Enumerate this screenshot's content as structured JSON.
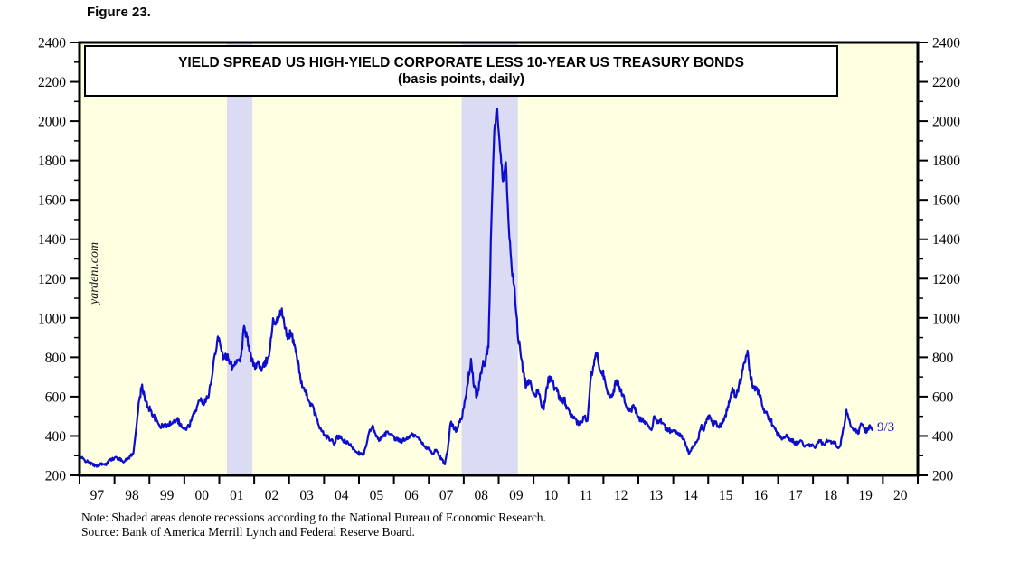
{
  "figure_label": "Figure 23.",
  "title": {
    "line1": "YIELD SPREAD US HIGH-YIELD CORPORATE LESS 10-YEAR US TREASURY BONDS",
    "line2": "(basis points, daily)"
  },
  "watermark": "yardeni.com",
  "notes": {
    "line1": "Note: Shaded areas denote recessions according to the National Bureau of Economic Research.",
    "line2": "Source: Bank of America Merrill Lynch and Federal Reserve Board."
  },
  "colors": {
    "plot_bg": "#FFFFE1",
    "line": "#0D0DCE",
    "recession_band": "#DBDBF4",
    "frame": "#000000",
    "text": "#000000",
    "annotation": "#0D0DCE"
  },
  "chart_data": {
    "type": "line",
    "title": "YIELD SPREAD US HIGH-YIELD CORPORATE LESS 10-YEAR US TREASURY BONDS",
    "subtitle": "(basis points, daily)",
    "ylabel": "basis points",
    "ylim": [
      200,
      2400
    ],
    "y_major_ticks": [
      200,
      400,
      600,
      800,
      1000,
      1200,
      1400,
      1600,
      1800,
      2000,
      2200,
      2400
    ],
    "y_minor_step": 100,
    "xlim": [
      1997,
      2021
    ],
    "x_tick_labels": [
      "97",
      "98",
      "99",
      "00",
      "01",
      "02",
      "03",
      "04",
      "05",
      "06",
      "07",
      "08",
      "09",
      "10",
      "11",
      "12",
      "13",
      "14",
      "15",
      "16",
      "17",
      "18",
      "19",
      "20"
    ],
    "grid": false,
    "legend": "none",
    "recessions": [
      [
        2001.22,
        2001.95
      ],
      [
        2007.94,
        2009.55
      ]
    ],
    "last_point_label": "9/3",
    "last_point_value": 430,
    "series": [
      {
        "name": "US High-Yield Corporate less 10-Year Treasury yield spread",
        "frequency": "monthly",
        "monthly": [
          {
            "year": 1997,
            "values": [
              290,
              280,
              270,
              262,
              255,
              250,
              248,
              262,
              252,
              258,
              285,
              280
            ]
          },
          {
            "year": 1998,
            "values": [
              292,
              282,
              276,
              272,
              283,
              300,
              310,
              450,
              580,
              660,
              580,
              548
            ]
          },
          {
            "year": 1999,
            "values": [
              530,
              500,
              478,
              452,
              448,
              458,
              452,
              468,
              478,
              488,
              462,
              440
            ]
          },
          {
            "year": 2000,
            "values": [
              432,
              450,
              480,
              520,
              555,
              585,
              570,
              590,
              620,
              700,
              820,
              905
            ]
          },
          {
            "year": 2001,
            "values": [
              860,
              790,
              810,
              770,
              752,
              778,
              788,
              800,
              955,
              900,
              820,
              782
            ]
          },
          {
            "year": 2002,
            "values": [
              752,
              778,
              728,
              758,
              790,
              850,
              1000,
              970,
              1010,
              1040,
              950,
              898
            ]
          },
          {
            "year": 2003,
            "values": [
              930,
              880,
              820,
              730,
              650,
              618,
              592,
              562,
              532,
              482,
              442,
              418
            ]
          },
          {
            "year": 2004,
            "values": [
              400,
              390,
              378,
              358,
              398,
              390,
              378,
              368,
              358,
              348,
              330,
              318
            ]
          },
          {
            "year": 2005,
            "values": [
              310,
              302,
              348,
              418,
              448,
              420,
              382,
              390,
              398,
              418,
              408,
              398
            ]
          },
          {
            "year": 2006,
            "values": [
              382,
              378,
              370,
              380,
              390,
              400,
              408,
              398,
              388,
              368,
              350,
              340
            ]
          },
          {
            "year": 2007,
            "values": [
              322,
              310,
              330,
              300,
              280,
              258,
              330,
              470,
              440,
              430,
              480,
              500
            ]
          },
          {
            "year": 2008,
            "values": [
              580,
              680,
              790,
              650,
              600,
              680,
              760,
              780,
              850,
              1500,
              1950,
              2070
            ]
          },
          {
            "year": 2009,
            "values": [
              1850,
              1700,
              1800,
              1450,
              1250,
              1150,
              930,
              820,
              720,
              650,
              680,
              630
            ]
          },
          {
            "year": 2010,
            "values": [
              600,
              640,
              570,
              540,
              650,
              700,
              670,
              640,
              610,
              570,
              590,
              540
            ]
          },
          {
            "year": 2011,
            "values": [
              510,
              490,
              480,
              460,
              470,
              500,
              480,
              680,
              760,
              830,
              760,
              730
            ]
          },
          {
            "year": 2012,
            "values": [
              690,
              620,
              600,
              630,
              680,
              650,
              610,
              570,
              540,
              530,
              550,
              510
            ]
          },
          {
            "year": 2013,
            "values": [
              480,
              490,
              470,
              450,
              430,
              500,
              470,
              480,
              460,
              440,
              430,
              420
            ]
          },
          {
            "year": 2014,
            "values": [
              430,
              420,
              400,
              380,
              350,
              310,
              340,
              360,
              380,
              450,
              430,
              490
            ]
          },
          {
            "year": 2015,
            "values": [
              500,
              460,
              470,
              450,
              460,
              490,
              530,
              590,
              640,
              600,
              650,
              700
            ]
          },
          {
            "year": 2016,
            "values": [
              780,
              840,
              700,
              650,
              630,
              620,
              560,
              520,
              500,
              480,
              450,
              420
            ]
          },
          {
            "year": 2017,
            "values": [
              400,
              390,
              400,
              390,
              380,
              370,
              360,
              380,
              360,
              350,
              360,
              350
            ]
          },
          {
            "year": 2018,
            "values": [
              340,
              365,
              375,
              360,
              370,
              380,
              365,
              370,
              340,
              360,
              440,
              530
            ]
          },
          {
            "year": 2019,
            "values": [
              480,
              440,
              430,
              410,
              460,
              440,
              420,
              460,
              430
            ]
          }
        ]
      }
    ]
  }
}
